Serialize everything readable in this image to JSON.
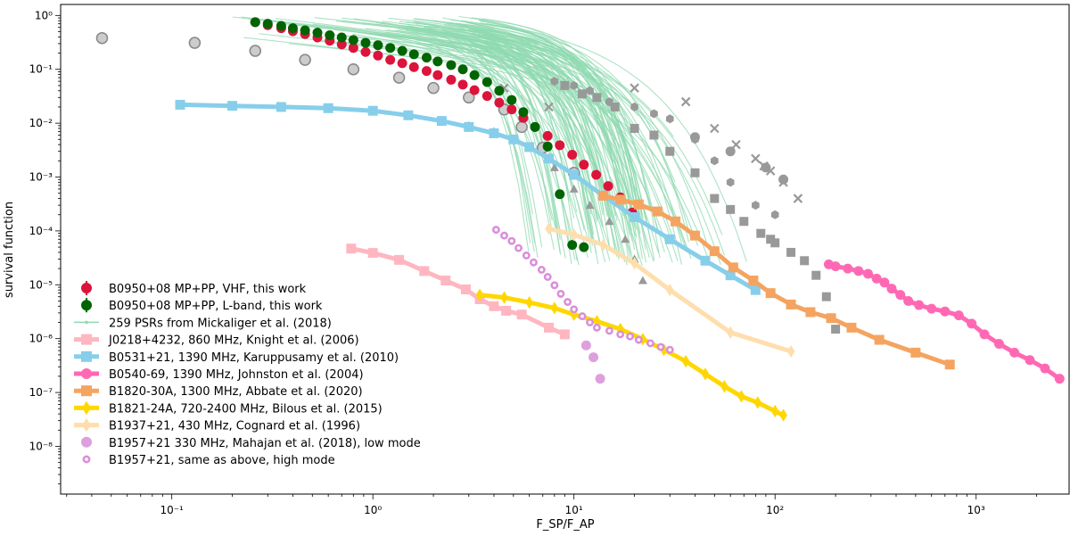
{
  "chart_data": {
    "type": "scatter",
    "xlabel": "F_SP/F_AP",
    "ylabel": "survival function",
    "xscale": "log",
    "yscale": "log",
    "xlim": [
      0.028,
      2900
    ],
    "ylim": [
      1.3e-09,
      1.6
    ],
    "x_ticks": [
      {
        "value": 0.1,
        "label": "10⁻¹"
      },
      {
        "value": 1,
        "label": "10⁰"
      },
      {
        "value": 10,
        "label": "10¹"
      },
      {
        "value": 100,
        "label": "10²"
      },
      {
        "value": 1000,
        "label": "10³"
      }
    ],
    "y_ticks": [
      {
        "value": 1,
        "label": "10⁰"
      },
      {
        "value": 0.1,
        "label": "10⁻¹"
      },
      {
        "value": 0.01,
        "label": "10⁻²"
      },
      {
        "value": 0.001,
        "label": "10⁻³"
      },
      {
        "value": 0.0001,
        "label": "10⁻⁴"
      },
      {
        "value": 1e-05,
        "label": "10⁻⁵"
      },
      {
        "value": 1e-06,
        "label": "10⁻⁶"
      },
      {
        "value": 1e-07,
        "label": "10⁻⁷"
      },
      {
        "value": 1e-08,
        "label": "10⁻⁸"
      }
    ],
    "legend_position": "bottom-left",
    "series": [
      {
        "name": "B0950+08 MP+PP, VHF, this work",
        "color": "#dc143c",
        "marker": "circle",
        "line": false,
        "x": [
          0.26,
          0.3,
          0.35,
          0.4,
          0.46,
          0.53,
          0.61,
          0.7,
          0.8,
          0.92,
          1.06,
          1.22,
          1.4,
          1.6,
          1.85,
          2.1,
          2.45,
          2.8,
          3.2,
          3.7,
          4.25,
          4.9,
          5.6,
          6.4,
          7.4,
          8.5,
          9.8,
          11.2,
          12.9,
          14.8,
          17.0,
          19.5
        ],
        "y": [
          0.75,
          0.66,
          0.58,
          0.51,
          0.45,
          0.39,
          0.34,
          0.29,
          0.25,
          0.21,
          0.18,
          0.15,
          0.13,
          0.11,
          0.093,
          0.078,
          0.064,
          0.052,
          0.041,
          0.032,
          0.024,
          0.018,
          0.0125,
          0.0085,
          0.0058,
          0.0039,
          0.0026,
          0.0017,
          0.0011,
          0.00068,
          0.00042,
          0.00022
        ]
      },
      {
        "name": "B0950+08 MP+PP, L-band, this work",
        "color": "#006400",
        "marker": "circle",
        "line": false,
        "x": [
          0.26,
          0.3,
          0.35,
          0.4,
          0.46,
          0.53,
          0.61,
          0.7,
          0.8,
          0.92,
          1.06,
          1.22,
          1.4,
          1.6,
          1.85,
          2.1,
          2.45,
          2.8,
          3.2,
          3.7,
          4.25,
          4.9,
          5.6,
          6.4,
          7.4,
          8.5,
          9.8,
          11.2
        ],
        "y": [
          0.75,
          0.7,
          0.64,
          0.58,
          0.53,
          0.48,
          0.43,
          0.39,
          0.35,
          0.31,
          0.28,
          0.25,
          0.22,
          0.19,
          0.165,
          0.14,
          0.12,
          0.1,
          0.078,
          0.058,
          0.04,
          0.027,
          0.016,
          0.0085,
          0.0037,
          0.00048,
          5.5e-05,
          5e-05
        ]
      },
      {
        "name": "259 PSRs from Mickaliger et al. (2018)",
        "color": "#8fd9b0",
        "marker": "line",
        "line": true,
        "x": [],
        "y": []
      },
      {
        "name": "J0218+4232, 860 MHz,  Knight et al. (2006)",
        "color": "#ffb6c1",
        "marker": "square",
        "line": true,
        "x": [
          0.78,
          1.0,
          1.35,
          1.8,
          2.3,
          2.9,
          3.4,
          4.0,
          4.6,
          5.5,
          7.5,
          9.0
        ],
        "y": [
          4.7e-05,
          3.9e-05,
          2.9e-05,
          1.8e-05,
          1.2e-05,
          8.2e-06,
          5.4e-06,
          4e-06,
          3.3e-06,
          2.8e-06,
          1.6e-06,
          1.2e-06
        ]
      },
      {
        "name": "B0531+21, 1390 MHz, Karuppusamy et al. (2010)",
        "color": "#87ceeb",
        "marker": "square",
        "line": true,
        "x": [
          0.11,
          0.2,
          0.35,
          0.6,
          1.0,
          1.5,
          2.2,
          3.0,
          4.0,
          5.0,
          6.0,
          7.5,
          10,
          14,
          20,
          30,
          45,
          60,
          80
        ],
        "y": [
          0.022,
          0.021,
          0.02,
          0.019,
          0.017,
          0.014,
          0.011,
          0.0085,
          0.0065,
          0.005,
          0.0036,
          0.0022,
          0.0011,
          0.00045,
          0.00018,
          7e-05,
          2.8e-05,
          1.5e-05,
          8e-06
        ]
      },
      {
        "name": "B0540-69, 1390 MHz, Johnston et al. (2004)",
        "color": "#ff69b4",
        "marker": "circle",
        "line": true,
        "x": [
          185,
          200,
          230,
          260,
          290,
          320,
          350,
          380,
          420,
          460,
          520,
          600,
          700,
          820,
          950,
          1100,
          1300,
          1550,
          1850,
          2200,
          2600
        ],
        "y": [
          2.4e-05,
          2.2e-05,
          2e-05,
          1.8e-05,
          1.6e-05,
          1.3e-05,
          1.1e-05,
          8.5e-06,
          6.5e-06,
          5e-06,
          4.2e-06,
          3.6e-06,
          3.2e-06,
          2.7e-06,
          1.9e-06,
          1.2e-06,
          8e-07,
          5.5e-07,
          4e-07,
          2.8e-07,
          1.8e-07
        ]
      },
      {
        "name": "B1820-30A, 1300 MHz, Abbate et al. (2020)",
        "color": "#f4a460",
        "marker": "square",
        "line": true,
        "x": [
          14,
          17,
          21,
          26,
          32,
          40,
          50,
          62,
          78,
          95,
          120,
          150,
          190,
          240,
          330,
          500,
          740
        ],
        "y": [
          0.00045,
          0.00038,
          0.00031,
          0.00023,
          0.00015,
          8.2e-05,
          4.2e-05,
          2.1e-05,
          1.2e-05,
          7e-06,
          4.3e-06,
          3.1e-06,
          2.4e-06,
          1.6e-06,
          9.5e-07,
          5.5e-07,
          3.3e-07
        ]
      },
      {
        "name": "B1821-24A, 720-2400 MHz, Bilous et al. (2015)",
        "color": "#ffd700",
        "marker": "diamond",
        "line": true,
        "x": [
          3.4,
          4.5,
          6,
          8,
          10,
          13,
          17,
          22,
          28,
          36,
          45,
          56,
          68,
          82,
          100,
          110
        ],
        "y": [
          6.5e-06,
          5.8e-06,
          4.7e-06,
          3.7e-06,
          2.8e-06,
          2.1e-06,
          1.5e-06,
          9.8e-07,
          6.2e-07,
          3.8e-07,
          2.2e-07,
          1.3e-07,
          8.5e-08,
          6.5e-08,
          4.5e-08,
          3.8e-08
        ]
      },
      {
        "name": "B1937+21, 430 MHz, Cognard et al. (1996)",
        "color": "#ffdead",
        "marker": "diamond",
        "line": true,
        "x": [
          7.5,
          10,
          14,
          20,
          30,
          60,
          120
        ],
        "y": [
          0.00011,
          8.5e-05,
          5.5e-05,
          2.5e-05,
          8e-06,
          1.3e-06,
          5.8e-07
        ]
      },
      {
        "name": "B1957+21 330 MHz, Mahajan et al. (2018), low mode",
        "color": "#dda0dd",
        "marker": "circle",
        "line": false,
        "x": [
          11.5,
          12.5,
          13.5
        ],
        "y": [
          7.5e-07,
          4.5e-07,
          1.8e-07
        ]
      },
      {
        "name": "B1957+21, same as above, high mode",
        "color": "#da8fda",
        "marker": "ring",
        "line": false,
        "x": [
          4.1,
          4.5,
          4.9,
          5.3,
          5.8,
          6.3,
          6.9,
          7.4,
          8.0,
          8.6,
          9.3,
          10,
          11,
          12,
          13,
          15,
          17,
          19,
          21,
          24,
          27,
          30
        ],
        "y": [
          0.000105,
          8.2e-05,
          6.5e-05,
          4.8e-05,
          3.5e-05,
          2.6e-05,
          1.9e-05,
          1.4e-05,
          9.8e-06,
          6.8e-06,
          4.8e-06,
          3.5e-06,
          2.6e-06,
          2e-06,
          1.6e-06,
          1.4e-06,
          1.2e-06,
          1.1e-06,
          9.5e-07,
          8.2e-07,
          7e-07,
          6.2e-07
        ]
      }
    ],
    "unlabeled_gray_points": {
      "color": "#999999",
      "circles_light": {
        "x": [
          0.045,
          0.13,
          0.26,
          0.46,
          0.8,
          1.35,
          2.0,
          3.0,
          4.5,
          5.5,
          7.0,
          10.0
        ],
        "y": [
          0.38,
          0.31,
          0.22,
          0.15,
          0.1,
          0.07,
          0.045,
          0.03,
          0.018,
          0.0085,
          0.0035,
          0.0012
        ]
      },
      "squares": {
        "x": [
          9,
          11,
          13,
          16,
          20,
          25,
          30,
          40,
          50,
          60,
          70,
          85,
          95,
          100,
          120,
          140,
          160,
          180,
          200
        ],
        "y": [
          0.05,
          0.035,
          0.03,
          0.02,
          0.008,
          0.006,
          0.003,
          0.0012,
          0.0004,
          0.00025,
          0.00015,
          9e-05,
          7e-05,
          6e-05,
          4e-05,
          2.8e-05,
          1.5e-05,
          6e-06,
          1.5e-06
        ]
      },
      "hexagons": {
        "x": [
          8,
          10,
          12,
          15,
          20,
          25,
          30,
          40,
          50,
          60,
          80,
          100
        ],
        "y": [
          0.06,
          0.05,
          0.04,
          0.025,
          0.02,
          0.015,
          0.012,
          0.005,
          0.002,
          0.0008,
          0.0003,
          0.0002
        ]
      },
      "triangles": {
        "x": [
          3,
          4,
          5,
          6,
          8,
          10,
          12,
          15,
          18,
          20,
          22
        ],
        "y": [
          0.009,
          0.007,
          0.005,
          0.0035,
          0.0015,
          0.0006,
          0.0003,
          0.00015,
          7e-05,
          3e-05,
          1.2e-05
        ]
      },
      "crosses": {
        "x": [
          4.5,
          7.5,
          20,
          36,
          50,
          64,
          80,
          88,
          95,
          110,
          130
        ],
        "y": [
          0.045,
          0.02,
          0.045,
          0.025,
          0.008,
          0.004,
          0.0022,
          0.0016,
          0.0013,
          0.0008,
          0.0004
        ]
      },
      "circles_dark": {
        "x": [
          40,
          60,
          90,
          110
        ],
        "y": [
          0.0055,
          0.003,
          0.0015,
          0.0009
        ]
      }
    }
  }
}
